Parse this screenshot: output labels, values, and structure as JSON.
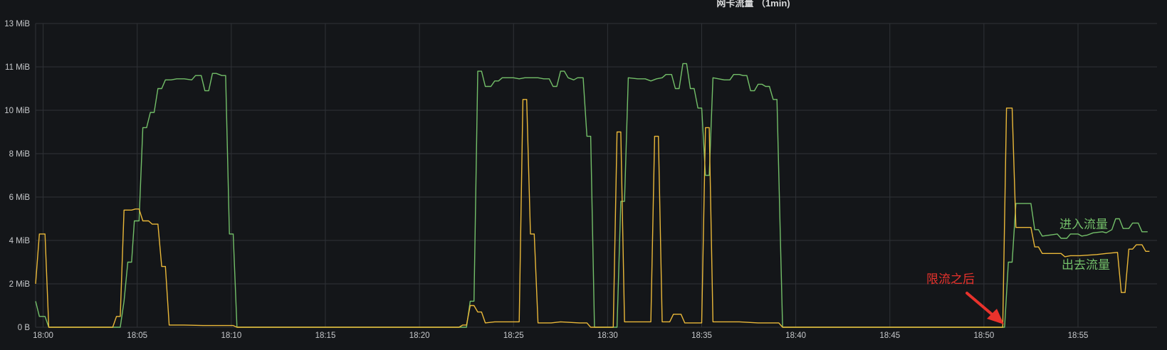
{
  "chart_data": {
    "type": "line",
    "title": "网卡流量 （1min)",
    "x_ticks": [
      "18:00",
      "18:05",
      "18:10",
      "18:15",
      "18:20",
      "18:25",
      "18:30",
      "18:35",
      "18:40",
      "18:45",
      "18:50",
      "18:55"
    ],
    "y_ticks": [
      "0 B",
      "2 MiB",
      "4 MiB",
      "6 MiB",
      "8 MiB",
      "10 MiB",
      "11 MiB",
      "13 MiB"
    ],
    "xlim": [
      -0.4,
      59.2
    ],
    "ylim": [
      0,
      14
    ],
    "grid": true,
    "x_unit": "minutes after 18:00",
    "series": [
      {
        "name": "进入流量",
        "color": "#73bf69",
        "points": [
          [
            -0.4,
            1.2
          ],
          [
            -0.2,
            0.5
          ],
          [
            0.1,
            0.5
          ],
          [
            0.3,
            0
          ],
          [
            4.1,
            0
          ],
          [
            4.3,
            1.2
          ],
          [
            4.5,
            3.0
          ],
          [
            4.7,
            3.0
          ],
          [
            4.85,
            4.9
          ],
          [
            5.1,
            4.9
          ],
          [
            5.3,
            9.2
          ],
          [
            5.5,
            9.2
          ],
          [
            5.7,
            9.9
          ],
          [
            5.9,
            9.9
          ],
          [
            6.1,
            11.0
          ],
          [
            6.3,
            11.0
          ],
          [
            6.5,
            11.4
          ],
          [
            6.8,
            11.4
          ],
          [
            7.1,
            11.45
          ],
          [
            7.5,
            11.45
          ],
          [
            7.9,
            11.4
          ],
          [
            8.1,
            11.6
          ],
          [
            8.4,
            11.6
          ],
          [
            8.6,
            10.9
          ],
          [
            8.8,
            10.9
          ],
          [
            9.0,
            11.7
          ],
          [
            9.2,
            11.7
          ],
          [
            9.5,
            11.6
          ],
          [
            9.7,
            11.6
          ],
          [
            9.9,
            4.3
          ],
          [
            10.1,
            4.3
          ],
          [
            10.3,
            0
          ],
          [
            22.5,
            0
          ],
          [
            22.7,
            1.2
          ],
          [
            22.9,
            1.2
          ],
          [
            23.1,
            11.8
          ],
          [
            23.3,
            11.8
          ],
          [
            23.5,
            11.1
          ],
          [
            23.8,
            11.1
          ],
          [
            24.0,
            11.35
          ],
          [
            24.2,
            11.35
          ],
          [
            24.4,
            11.5
          ],
          [
            25.0,
            11.5
          ],
          [
            25.3,
            11.45
          ],
          [
            25.6,
            11.5
          ],
          [
            26.3,
            11.5
          ],
          [
            26.6,
            11.45
          ],
          [
            26.9,
            11.45
          ],
          [
            27.1,
            11.1
          ],
          [
            27.3,
            11.1
          ],
          [
            27.5,
            11.8
          ],
          [
            27.7,
            11.8
          ],
          [
            27.9,
            11.5
          ],
          [
            28.2,
            11.4
          ],
          [
            28.4,
            11.5
          ],
          [
            28.7,
            11.5
          ],
          [
            28.9,
            8.8
          ],
          [
            29.1,
            8.8
          ],
          [
            29.3,
            0
          ],
          [
            30.5,
            0
          ],
          [
            30.7,
            5.8
          ],
          [
            30.9,
            5.8
          ],
          [
            31.1,
            11.5
          ],
          [
            31.6,
            11.45
          ],
          [
            32.0,
            11.45
          ],
          [
            32.3,
            11.35
          ],
          [
            32.6,
            11.45
          ],
          [
            32.9,
            11.5
          ],
          [
            33.1,
            11.65
          ],
          [
            33.4,
            11.65
          ],
          [
            33.6,
            11.0
          ],
          [
            33.8,
            11.0
          ],
          [
            34.0,
            12.15
          ],
          [
            34.2,
            12.15
          ],
          [
            34.4,
            11.0
          ],
          [
            34.6,
            11.0
          ],
          [
            34.8,
            10.1
          ],
          [
            35.0,
            10.1
          ],
          [
            35.2,
            7.0
          ],
          [
            35.4,
            7.0
          ],
          [
            35.6,
            11.5
          ],
          [
            35.9,
            11.45
          ],
          [
            36.2,
            11.4
          ],
          [
            36.5,
            11.4
          ],
          [
            36.7,
            11.65
          ],
          [
            37.0,
            11.65
          ],
          [
            37.2,
            11.6
          ],
          [
            37.4,
            11.6
          ],
          [
            37.6,
            10.9
          ],
          [
            37.8,
            10.9
          ],
          [
            38.0,
            11.2
          ],
          [
            38.2,
            11.2
          ],
          [
            38.4,
            11.1
          ],
          [
            38.6,
            11.1
          ],
          [
            38.8,
            10.5
          ],
          [
            39.0,
            10.5
          ],
          [
            39.3,
            0
          ],
          [
            51.1,
            0
          ],
          [
            51.3,
            3.0
          ],
          [
            51.5,
            3.0
          ],
          [
            51.7,
            5.7
          ],
          [
            52.5,
            5.7
          ],
          [
            52.7,
            4.5
          ],
          [
            52.9,
            4.5
          ],
          [
            53.1,
            4.2
          ],
          [
            53.5,
            4.25
          ],
          [
            53.9,
            4.3
          ],
          [
            54.1,
            4.1
          ],
          [
            54.4,
            4.1
          ],
          [
            54.6,
            4.3
          ],
          [
            55.0,
            4.3
          ],
          [
            55.2,
            4.2
          ],
          [
            55.5,
            4.25
          ],
          [
            55.8,
            4.35
          ],
          [
            56.3,
            4.4
          ],
          [
            56.5,
            4.35
          ],
          [
            56.8,
            4.5
          ],
          [
            57.0,
            5.0
          ],
          [
            57.2,
            5.0
          ],
          [
            57.4,
            4.55
          ],
          [
            57.7,
            4.55
          ],
          [
            57.9,
            4.8
          ],
          [
            58.2,
            4.8
          ],
          [
            58.4,
            4.4
          ],
          [
            58.7,
            4.4
          ]
        ]
      },
      {
        "name": "出去流量",
        "color": "#eab839",
        "points": [
          [
            -0.4,
            2.0
          ],
          [
            -0.2,
            4.3
          ],
          [
            0.1,
            4.3
          ],
          [
            0.3,
            0
          ],
          [
            3.7,
            0
          ],
          [
            3.9,
            0.5
          ],
          [
            4.1,
            0.5
          ],
          [
            4.3,
            5.4
          ],
          [
            4.7,
            5.4
          ],
          [
            4.9,
            5.45
          ],
          [
            5.1,
            5.45
          ],
          [
            5.3,
            4.9
          ],
          [
            5.6,
            4.9
          ],
          [
            5.8,
            4.75
          ],
          [
            6.1,
            4.75
          ],
          [
            6.3,
            2.8
          ],
          [
            6.5,
            2.8
          ],
          [
            6.7,
            0.1
          ],
          [
            7.5,
            0.1
          ],
          [
            8.5,
            0.08
          ],
          [
            9.5,
            0.08
          ],
          [
            10.1,
            0.08
          ],
          [
            10.3,
            0
          ],
          [
            22.1,
            0
          ],
          [
            22.3,
            0.1
          ],
          [
            22.5,
            0.1
          ],
          [
            22.7,
            1.0
          ],
          [
            22.9,
            1.0
          ],
          [
            23.1,
            0.7
          ],
          [
            23.3,
            0.7
          ],
          [
            23.5,
            0.2
          ],
          [
            24.0,
            0.25
          ],
          [
            25.3,
            0.25
          ],
          [
            25.5,
            10.5
          ],
          [
            25.7,
            10.5
          ],
          [
            25.9,
            4.3
          ],
          [
            26.1,
            4.3
          ],
          [
            26.3,
            0.2
          ],
          [
            27.0,
            0.2
          ],
          [
            27.5,
            0.25
          ],
          [
            28.5,
            0.2
          ],
          [
            28.9,
            0.2
          ],
          [
            29.1,
            0
          ],
          [
            30.3,
            0
          ],
          [
            30.5,
            9.0
          ],
          [
            30.7,
            9.0
          ],
          [
            30.9,
            0.25
          ],
          [
            32.3,
            0.25
          ],
          [
            32.5,
            8.8
          ],
          [
            32.7,
            8.8
          ],
          [
            32.9,
            0.25
          ],
          [
            33.3,
            0.25
          ],
          [
            33.5,
            0.6
          ],
          [
            33.9,
            0.6
          ],
          [
            34.1,
            0.2
          ],
          [
            35.0,
            0.2
          ],
          [
            35.2,
            9.2
          ],
          [
            35.4,
            9.2
          ],
          [
            35.6,
            0.25
          ],
          [
            36.5,
            0.25
          ],
          [
            37.0,
            0.25
          ],
          [
            38.0,
            0.2
          ],
          [
            39.1,
            0.2
          ],
          [
            39.3,
            0
          ],
          [
            51.0,
            0
          ],
          [
            51.2,
            10.1
          ],
          [
            51.5,
            10.1
          ],
          [
            51.7,
            4.6
          ],
          [
            52.5,
            4.6
          ],
          [
            52.7,
            3.7
          ],
          [
            52.9,
            3.7
          ],
          [
            53.1,
            3.4
          ],
          [
            54.1,
            3.4
          ],
          [
            54.3,
            3.25
          ],
          [
            54.6,
            3.3
          ],
          [
            55.1,
            3.3
          ],
          [
            56.0,
            3.35
          ],
          [
            56.5,
            3.4
          ],
          [
            57.1,
            3.45
          ],
          [
            57.3,
            1.6
          ],
          [
            57.5,
            1.6
          ],
          [
            57.7,
            3.6
          ],
          [
            57.9,
            3.6
          ],
          [
            58.1,
            3.8
          ],
          [
            58.4,
            3.8
          ],
          [
            58.6,
            3.5
          ],
          [
            58.8,
            3.5
          ]
        ]
      }
    ],
    "annotations": {
      "inbound_label": "进入流量",
      "outbound_label": "出去流量",
      "after_limit_label": "限流之后",
      "inbound_color": "#73bf69",
      "outbound_color": "#73bf69",
      "after_limit_color": "#e8322c"
    }
  }
}
